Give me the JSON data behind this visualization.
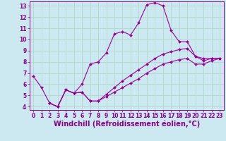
{
  "background_color": "#cce8f0",
  "grid_color": "#b0d8cc",
  "line_color": "#990099",
  "xlabel": "Windchill (Refroidissement éolien,°C)",
  "xlim": [
    -0.5,
    23.5
  ],
  "ylim": [
    3.7,
    13.4
  ],
  "xticks": [
    0,
    1,
    2,
    3,
    4,
    5,
    6,
    7,
    8,
    9,
    10,
    11,
    12,
    13,
    14,
    15,
    16,
    17,
    18,
    19,
    20,
    21,
    22,
    23
  ],
  "yticks": [
    4,
    5,
    6,
    7,
    8,
    9,
    10,
    11,
    12,
    13
  ],
  "series": [
    {
      "x": [
        0,
        1,
        2,
        3,
        4,
        5,
        6,
        7,
        8,
        9,
        10,
        11,
        12,
        13,
        14,
        15,
        16,
        17,
        18,
        19,
        20,
        21,
        22,
        23
      ],
      "y": [
        6.7,
        5.7,
        4.3,
        4.0,
        5.5,
        5.2,
        6.0,
        7.8,
        8.0,
        8.8,
        10.5,
        10.7,
        10.4,
        11.5,
        13.1,
        13.3,
        13.0,
        10.8,
        9.8,
        9.8,
        8.5,
        8.1,
        8.3,
        8.3
      ]
    },
    {
      "x": [
        2,
        3,
        4,
        5,
        6,
        7,
        8,
        9,
        10,
        11,
        12,
        13,
        14,
        15,
        16,
        17,
        18,
        19,
        20,
        21,
        22,
        23
      ],
      "y": [
        4.3,
        4.0,
        5.5,
        5.2,
        5.3,
        4.5,
        4.5,
        5.1,
        5.7,
        6.3,
        6.8,
        7.3,
        7.8,
        8.3,
        8.7,
        8.9,
        9.1,
        9.2,
        8.5,
        8.3,
        8.3,
        8.3
      ]
    },
    {
      "x": [
        2,
        3,
        4,
        5,
        6,
        7,
        8,
        9,
        10,
        11,
        12,
        13,
        14,
        15,
        16,
        17,
        18,
        19,
        20,
        21,
        22,
        23
      ],
      "y": [
        4.3,
        4.0,
        5.5,
        5.2,
        5.3,
        4.5,
        4.5,
        4.9,
        5.3,
        5.7,
        6.1,
        6.5,
        7.0,
        7.4,
        7.8,
        8.0,
        8.2,
        8.3,
        7.8,
        7.8,
        8.1,
        8.3
      ]
    }
  ],
  "font_color": "#880088",
  "tick_fontsize": 5.5,
  "label_fontsize": 7.0,
  "markersize": 2.0,
  "linewidth": 0.8
}
